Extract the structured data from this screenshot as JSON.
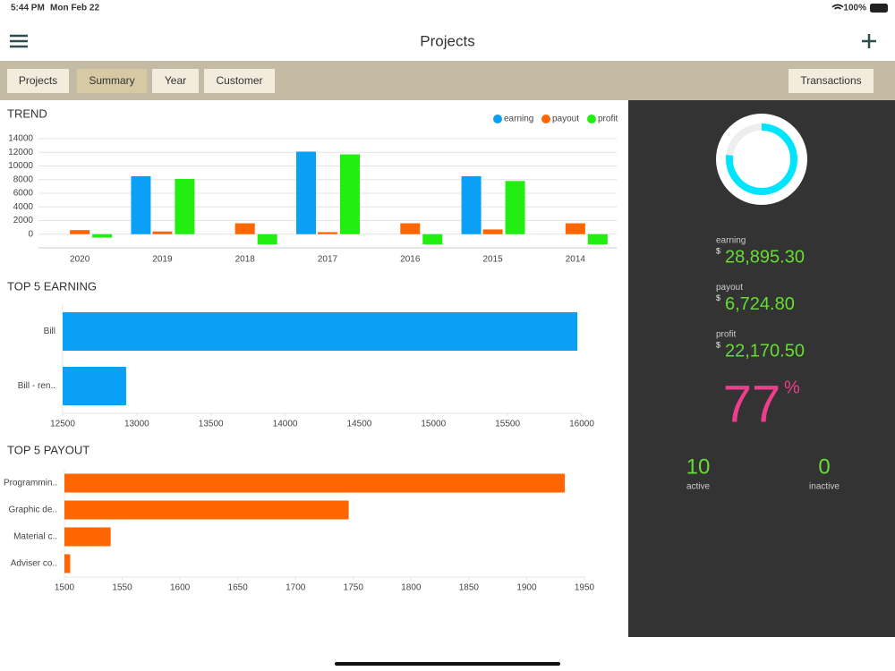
{
  "status_bar": {
    "time": "5:44 PM",
    "date": "Mon Feb 22",
    "battery": "100%"
  },
  "header": {
    "title": "Projects"
  },
  "tabs": [
    "Projects",
    "Summary",
    "Year",
    "Customer"
  ],
  "selected_tab": "Summary",
  "action_button": "Transactions",
  "chart_data": [
    {
      "type": "bar",
      "title": "TREND",
      "categories": [
        "2020",
        "2019",
        "2018",
        "2017",
        "2016",
        "2015",
        "2014"
      ],
      "series": [
        {
          "name": "earning",
          "color": "#0aa0f5",
          "values": [
            0,
            8500,
            0,
            12100,
            0,
            8500,
            0
          ]
        },
        {
          "name": "payout",
          "color": "#ff6600",
          "values": [
            600,
            400,
            1600,
            300,
            1600,
            700,
            1600
          ]
        },
        {
          "name": "profit",
          "color": "#22ee11",
          "values": [
            -500,
            8100,
            -1500,
            11700,
            -1500,
            7800,
            -1500
          ]
        }
      ],
      "ylim": [
        -2000,
        14000
      ],
      "yticks": [
        0,
        2000,
        4000,
        6000,
        8000,
        10000,
        12000,
        14000
      ],
      "grid": true,
      "legend": "top-right"
    },
    {
      "type": "hbar",
      "title": "TOP 5 EARNING",
      "categories": [
        "Bill",
        "Bill - ren.."
      ],
      "values": [
        15970,
        12928
      ],
      "color": "#0aa0f5",
      "xlim": [
        12500,
        16000
      ],
      "xticks": [
        12500,
        13000,
        13500,
        14000,
        14500,
        15000,
        15500,
        16000
      ]
    },
    {
      "type": "hbar",
      "title": "TOP 5 PAYOUT",
      "categories": [
        "Programmin..",
        "Graphic de..",
        "Material c..",
        "Adviser co.."
      ],
      "values": [
        1933,
        1746,
        1540,
        1505
      ],
      "color": "#ff6600",
      "xlim": [
        1500,
        1950
      ],
      "xticks": [
        1500,
        1550,
        1600,
        1650,
        1700,
        1750,
        1800,
        1850,
        1900,
        1950
      ]
    }
  ],
  "summary": {
    "metrics": [
      {
        "label": "earning",
        "currency": "$",
        "value": "28,895.30"
      },
      {
        "label": "payout",
        "currency": "$",
        "value": "6,724.80"
      },
      {
        "label": "profit",
        "currency": "$",
        "value": "22,170.50"
      }
    ],
    "percent": 77,
    "percent_sign": "%",
    "counts": [
      {
        "value": 10,
        "label": "active"
      },
      {
        "value": 0,
        "label": "inactive"
      }
    ]
  }
}
